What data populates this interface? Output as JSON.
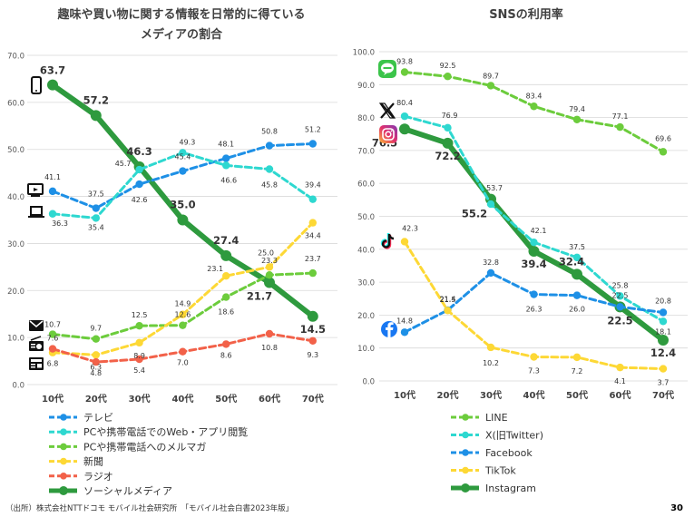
{
  "page": {
    "source": "（出所）株式会社NTTドコモ モバイル社会研究所　「モバイル社会白書2023年版」",
    "page_number": "30"
  },
  "chart_data": [
    {
      "type": "line",
      "title_lines": [
        "趣味や買い物に関する情報を日常的に得ている",
        "メディアの割合"
      ],
      "categories": [
        "10代",
        "20代",
        "30代",
        "40代",
        "50代",
        "60代",
        "70代"
      ],
      "ylim": [
        0,
        70
      ],
      "yticks": [
        "0.0",
        "10.0",
        "20.0",
        "30.0",
        "40.0",
        "50.0",
        "60.0",
        "70.0"
      ],
      "grid": true,
      "legend_position": "bottom",
      "series": [
        {
          "name": "テレビ",
          "values": [
            41.1,
            37.5,
            42.6,
            45.4,
            48.1,
            50.8,
            51.2
          ],
          "color": "#1e90e6",
          "style": "dashed",
          "icon": "tv-icon"
        },
        {
          "name": "PCや携帯電話でのWeb・アプリ閲覧",
          "values": [
            36.3,
            35.4,
            45.7,
            49.3,
            46.6,
            45.8,
            39.4
          ],
          "color": "#2ed8d0",
          "style": "dashed",
          "icon": "laptop-icon"
        },
        {
          "name": "PCや携帯電話へのメルマガ",
          "values": [
            10.7,
            9.7,
            12.5,
            12.6,
            18.6,
            23.3,
            23.7
          ],
          "color": "#6ccc3c",
          "style": "dashed",
          "icon": "mail-icon"
        },
        {
          "name": "新聞",
          "values": [
            6.8,
            6.3,
            8.9,
            14.9,
            23.1,
            25.0,
            34.4
          ],
          "color": "#fdd835",
          "style": "dashed",
          "icon": "newspaper-icon"
        },
        {
          "name": "ラジオ",
          "values": [
            7.6,
            4.8,
            5.4,
            7.0,
            8.6,
            10.8,
            9.3
          ],
          "color": "#f26149",
          "style": "dashed",
          "icon": "radio-icon"
        },
        {
          "name": "ソーシャルメディア",
          "values": [
            63.7,
            57.2,
            46.3,
            35.0,
            27.4,
            21.7,
            14.5
          ],
          "color": "#2e9a3e",
          "style": "solid",
          "icon": "smartphone-icon"
        }
      ]
    },
    {
      "type": "line",
      "title_lines": [
        "SNSの利用率"
      ],
      "categories": [
        "10代",
        "20代",
        "30代",
        "40代",
        "50代",
        "60代",
        "70代"
      ],
      "ylim": [
        0,
        100
      ],
      "yticks": [
        "0.0",
        "10.0",
        "20.0",
        "30.0",
        "40.0",
        "50.0",
        "60.0",
        "70.0",
        "80.0",
        "90.0",
        "100.0"
      ],
      "grid": true,
      "legend_position": "bottom",
      "series": [
        {
          "name": "LINE",
          "values": [
            93.8,
            92.5,
            89.7,
            83.4,
            79.4,
            77.1,
            69.6
          ],
          "color": "#6ccc3c",
          "style": "dashed",
          "icon": "line-app-icon"
        },
        {
          "name": "X(旧Twitter)",
          "values": [
            80.4,
            76.9,
            53.7,
            42.1,
            37.5,
            25.8,
            18.1
          ],
          "color": "#2ed8d0",
          "style": "dashed",
          "icon": "x-logo-icon"
        },
        {
          "name": "Facebook",
          "values": [
            14.8,
            21.5,
            32.8,
            26.3,
            26.0,
            22.5,
            20.8
          ],
          "color": "#1e90e6",
          "style": "dashed",
          "icon": "facebook-icon"
        },
        {
          "name": "TikTok",
          "values": [
            42.3,
            21.4,
            10.2,
            7.3,
            7.2,
            4.1,
            3.7
          ],
          "color": "#fdd835",
          "style": "dashed",
          "icon": "tiktok-icon"
        },
        {
          "name": "Instagram",
          "values": [
            76.5,
            72.2,
            55.2,
            39.4,
            32.4,
            22.5,
            12.4
          ],
          "color": "#2e9a3e",
          "style": "solid",
          "icon": "instagram-icon"
        }
      ]
    }
  ]
}
